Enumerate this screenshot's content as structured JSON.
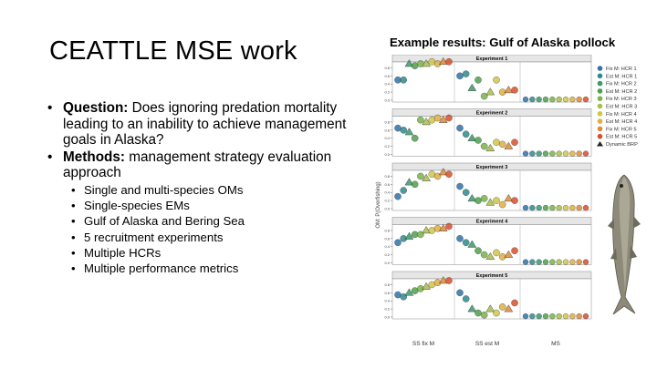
{
  "slide": {
    "title": "CEATTLE MSE work",
    "bullets": [
      {
        "label": "Question:",
        "text": " Does ignoring predation mortality leading to an inability to achieve management goals in Alaska?"
      },
      {
        "label": "Methods:",
        "text": " management strategy evaluation approach"
      }
    ],
    "sub_bullets": [
      "Single and multi-species OMs",
      "Single-species EMs",
      "Gulf of Alaska and Bering Sea",
      "5 recruitment experiments",
      "Multiple HCRs",
      "Multiple performance metrics"
    ],
    "bullet_glyph": "•"
  },
  "figure": {
    "title": "Example results: Gulf of Alaska pollock",
    "fish_icon": "pollock-fish-icon"
  },
  "chart_data": {
    "type": "scatter",
    "ylabel": "OM: P(Overfishing)",
    "groups": [
      "SS fix M",
      "SS est M",
      "MS"
    ],
    "yticks": [
      "0.0",
      "0.2",
      "0.4",
      "0.6",
      "0.8"
    ],
    "ylim": [
      0,
      0.9
    ],
    "panels": [
      {
        "title": "Experiment 1",
        "ss_fix": [
          0.5,
          0.5,
          0.9,
          0.85,
          0.9,
          0.9,
          0.95,
          0.9,
          0.95,
          0.95
        ],
        "ss_est": [
          0.6,
          0.65,
          0.3,
          0.5,
          0.1,
          0.2,
          0.5,
          0.2,
          0.25,
          0.25
        ]
      },
      {
        "title": "Experiment 2",
        "ss_fix": [
          0.65,
          0.6,
          0.55,
          0.4,
          0.85,
          0.8,
          0.85,
          0.9,
          0.85,
          0.9
        ],
        "ss_est": [
          0.65,
          0.5,
          0.4,
          0.35,
          0.2,
          0.15,
          0.3,
          0.25,
          0.2,
          0.3
        ]
      },
      {
        "title": "Experiment 3",
        "ss_fix": [
          0.3,
          0.45,
          0.65,
          0.6,
          0.8,
          0.75,
          0.85,
          0.8,
          0.9,
          0.85
        ],
        "ss_est": [
          0.55,
          0.4,
          0.25,
          0.2,
          0.25,
          0.15,
          0.2,
          0.1,
          0.25,
          0.2
        ]
      },
      {
        "title": "Experiment 4",
        "ss_fix": [
          0.5,
          0.6,
          0.65,
          0.7,
          0.7,
          0.8,
          0.8,
          0.85,
          0.85,
          0.9
        ],
        "ss_est": [
          0.6,
          0.5,
          0.45,
          0.3,
          0.2,
          0.15,
          0.25,
          0.15,
          0.2,
          0.3
        ]
      },
      {
        "title": "Experiment 5",
        "ss_fix": [
          0.55,
          0.5,
          0.6,
          0.65,
          0.7,
          0.75,
          0.8,
          0.85,
          0.9,
          0.9
        ],
        "ss_est": [
          0.6,
          0.45,
          0.2,
          0.1,
          0.05,
          0.2,
          0.1,
          0.25,
          0.2,
          0.35
        ]
      }
    ],
    "ms_values": [
      0.02,
      0.02,
      0.02,
      0.02,
      0.02,
      0.02,
      0.02,
      0.02,
      0.02,
      0.02
    ],
    "dynamic_brp": "triangle",
    "legend": {
      "position": "right",
      "entries": [
        {
          "name": "Fix M: HCR 1",
          "color": "#2e74a8"
        },
        {
          "name": "Est M: HCR 1",
          "color": "#2f8a8f"
        },
        {
          "name": "Fix M: HCR 2",
          "color": "#3a9a6a"
        },
        {
          "name": "Est M: HCR 2",
          "color": "#4ea04e"
        },
        {
          "name": "Fix M: HCR 3",
          "color": "#7ab34a"
        },
        {
          "name": "Est M: HCR 3",
          "color": "#a8bf48"
        },
        {
          "name": "Fix M: HCR 4",
          "color": "#d2c648"
        },
        {
          "name": "Est M: HCR 4",
          "color": "#e0b040"
        },
        {
          "name": "Fix M: HCR 5",
          "color": "#e08a38"
        },
        {
          "name": "Est M: HCR 5",
          "color": "#d8502a"
        },
        {
          "name": "Dynamic BRP",
          "color": "#222222",
          "marker": "triangle"
        }
      ]
    }
  }
}
